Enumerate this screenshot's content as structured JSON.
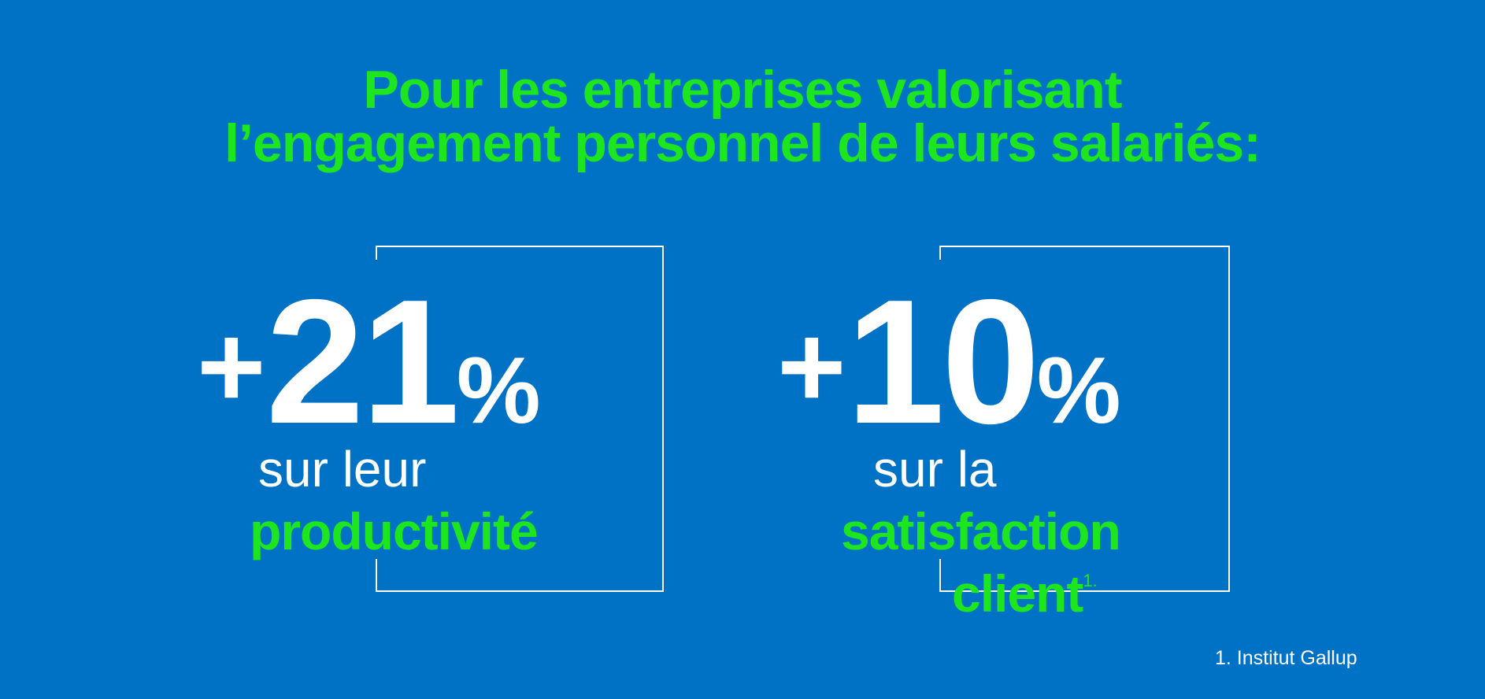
{
  "headline": {
    "line1": "Pour les entreprises valorisant",
    "line2": "l’engagement personnel de leurs salariés:"
  },
  "stats": [
    {
      "plus": "+",
      "number": "21",
      "percent": "%",
      "line1": "sur leur",
      "line2": "productivité"
    },
    {
      "plus": "+",
      "number": "10",
      "percent": "%",
      "line1": "sur la",
      "line2": "satisfaction",
      "line3": "client",
      "footnote_mark": "1."
    }
  ],
  "footnote": {
    "text": "1. Institut Gallup"
  },
  "colors": {
    "background": "#0072c6",
    "accent": "#1ee61e",
    "text": "#ffffff",
    "frame": "#ffffff"
  }
}
